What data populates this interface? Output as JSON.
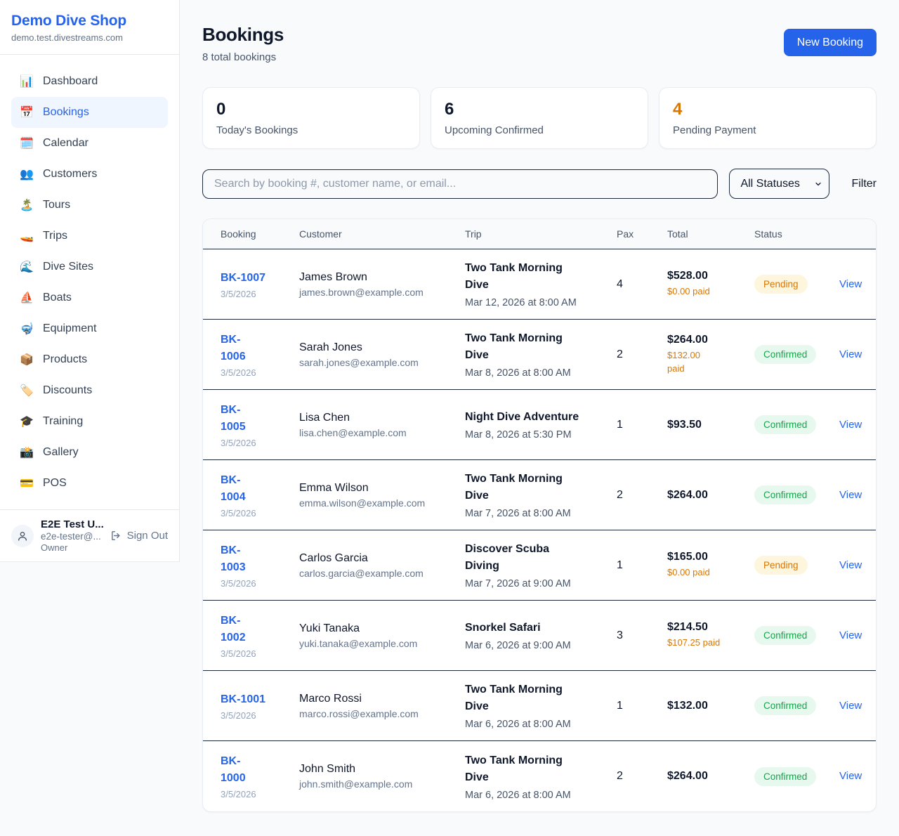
{
  "sidebar": {
    "brand": {
      "name": "Demo Dive Shop",
      "domain": "demo.test.divestreams.com"
    },
    "nav": [
      {
        "id": "dashboard",
        "icon": "📊",
        "label": "Dashboard",
        "active": false
      },
      {
        "id": "bookings",
        "icon": "📅",
        "label": "Bookings",
        "active": true
      },
      {
        "id": "calendar",
        "icon": "🗓️",
        "label": "Calendar",
        "active": false
      },
      {
        "id": "customers",
        "icon": "👥",
        "label": "Customers",
        "active": false
      },
      {
        "id": "tours",
        "icon": "🏝️",
        "label": "Tours",
        "active": false
      },
      {
        "id": "trips",
        "icon": "🚤",
        "label": "Trips",
        "active": false
      },
      {
        "id": "dive-sites",
        "icon": "🌊",
        "label": "Dive Sites",
        "active": false
      },
      {
        "id": "boats",
        "icon": "⛵",
        "label": "Boats",
        "active": false
      },
      {
        "id": "equipment",
        "icon": "🤿",
        "label": "Equipment",
        "active": false
      },
      {
        "id": "products",
        "icon": "📦",
        "label": "Products",
        "active": false
      },
      {
        "id": "discounts",
        "icon": "🏷️",
        "label": "Discounts",
        "active": false
      },
      {
        "id": "training",
        "icon": "🎓",
        "label": "Training",
        "active": false
      },
      {
        "id": "gallery",
        "icon": "📸",
        "label": "Gallery",
        "active": false
      },
      {
        "id": "pos",
        "icon": "💳",
        "label": "POS",
        "active": false
      }
    ],
    "user": {
      "name": "E2E Test U...",
      "email": "e2e-tester@...",
      "role": "Owner",
      "sign_out_label": "Sign Out"
    }
  },
  "header": {
    "title": "Bookings",
    "subtitle": "8 total bookings",
    "new_booking_label": "New Booking"
  },
  "stats": [
    {
      "value": "0",
      "label": "Today's Bookings",
      "value_color": "#0f172a"
    },
    {
      "value": "6",
      "label": "Upcoming Confirmed",
      "value_color": "#0f172a"
    },
    {
      "value": "4",
      "label": "Pending Payment",
      "value_color": "#d97706"
    }
  ],
  "filters": {
    "search_placeholder": "Search by booking #, customer name, or email...",
    "status_selected": "All Statuses",
    "filter_label": "Filter"
  },
  "table": {
    "columns": [
      "Booking",
      "Customer",
      "Trip",
      "Pax",
      "Total",
      "Status"
    ],
    "view_label": "View",
    "rows": [
      {
        "number": "BK-1007",
        "date": "3/5/2026",
        "customer": "James Brown",
        "email": "james.brown@example.com",
        "trip": "Two Tank Morning\nDive",
        "trip_datetime": "Mar 12, 2026 at 8:00 AM",
        "pax": "4",
        "total": "$528.00",
        "paid": "$0.00 paid",
        "status": "Pending"
      },
      {
        "number": "BK-\n1006",
        "date": "3/5/2026",
        "customer": "Sarah Jones",
        "email": "sarah.jones@example.com",
        "trip": "Two Tank Morning\nDive",
        "trip_datetime": "Mar 8, 2026 at 8:00 AM",
        "pax": "2",
        "total": "$264.00",
        "paid": "$132.00\npaid",
        "status": "Confirmed"
      },
      {
        "number": "BK-\n1005",
        "date": "3/5/2026",
        "customer": "Lisa Chen",
        "email": "lisa.chen@example.com",
        "trip": "Night Dive Adventure",
        "trip_datetime": "Mar 8, 2026 at 5:30 PM",
        "pax": "1",
        "total": "$93.50",
        "paid": "",
        "status": "Confirmed"
      },
      {
        "number": "BK-\n1004",
        "date": "3/5/2026",
        "customer": "Emma Wilson",
        "email": "emma.wilson@example.com",
        "trip": "Two Tank Morning\nDive",
        "trip_datetime": "Mar 7, 2026 at 8:00 AM",
        "pax": "2",
        "total": "$264.00",
        "paid": "",
        "status": "Confirmed"
      },
      {
        "number": "BK-\n1003",
        "date": "3/5/2026",
        "customer": "Carlos Garcia",
        "email": "carlos.garcia@example.com",
        "trip": "Discover Scuba\nDiving",
        "trip_datetime": "Mar 7, 2026 at 9:00 AM",
        "pax": "1",
        "total": "$165.00",
        "paid": "$0.00 paid",
        "status": "Pending"
      },
      {
        "number": "BK-\n1002",
        "date": "3/5/2026",
        "customer": "Yuki Tanaka",
        "email": "yuki.tanaka@example.com",
        "trip": "Snorkel Safari",
        "trip_datetime": "Mar 6, 2026 at 9:00 AM",
        "pax": "3",
        "total": "$214.50",
        "paid": "$107.25 paid",
        "status": "Confirmed"
      },
      {
        "number": "BK-1001",
        "date": "3/5/2026",
        "customer": "Marco Rossi",
        "email": "marco.rossi@example.com",
        "trip": "Two Tank Morning\nDive",
        "trip_datetime": "Mar 6, 2026 at 8:00 AM",
        "pax": "1",
        "total": "$132.00",
        "paid": "",
        "status": "Confirmed"
      },
      {
        "number": "BK-\n1000",
        "date": "3/5/2026",
        "customer": "John Smith",
        "email": "john.smith@example.com",
        "trip": "Two Tank Morning\nDive",
        "trip_datetime": "Mar 6, 2026 at 8:00 AM",
        "pax": "2",
        "total": "$264.00",
        "paid": "",
        "status": "Confirmed"
      }
    ]
  },
  "colors": {
    "accent_blue": "#2563eb",
    "pending_text": "#d97706",
    "pending_bg": "#fdf5dc",
    "confirmed_text": "#16a34a",
    "confirmed_bg": "#e7f8ee",
    "page_bg": "#f8fafc"
  }
}
